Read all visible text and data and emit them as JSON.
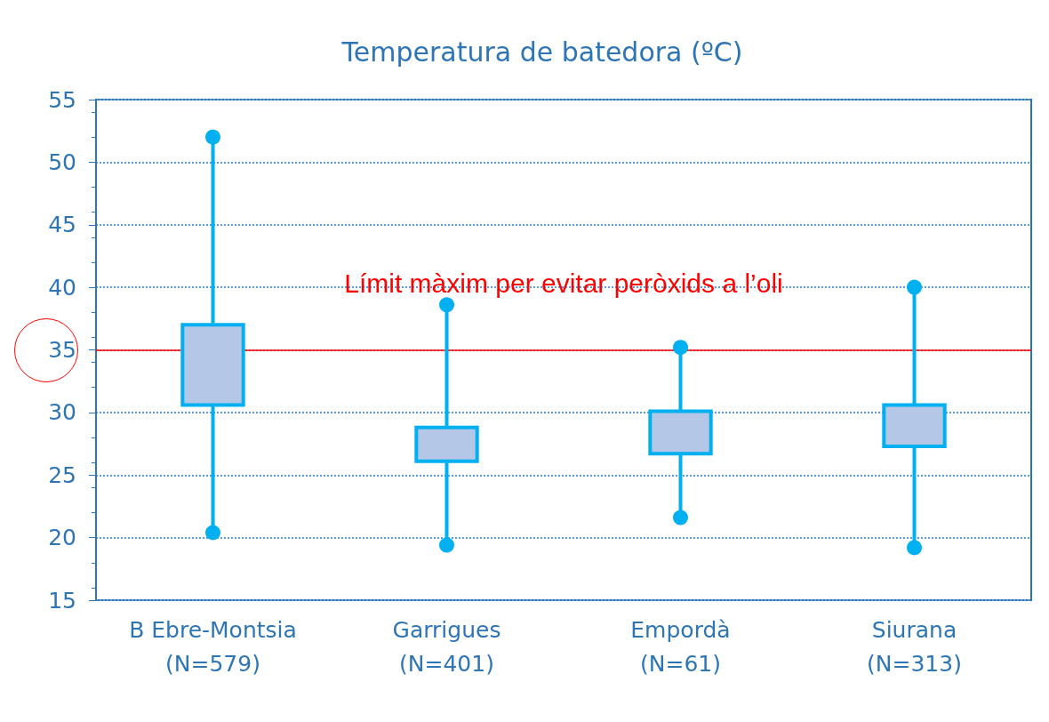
{
  "chart_data": {
    "type": "box",
    "title": "Temperatura de batedora (ºC)",
    "categories": [
      "B Ebre-Montsia\n(N=579)",
      "Garrigues\n(N=401)",
      "Empordà\n(N=61)",
      "Siurana\n(N=313)"
    ],
    "series": [
      {
        "color": "#00b0f0",
        "boxes": [
          {
            "low": 20.4,
            "q1": 30.6,
            "q3": 37,
            "high": 52
          },
          {
            "low": 19.4,
            "q1": 26.1,
            "q3": 28.8,
            "high": 38.6
          },
          {
            "low": 21.6,
            "q1": 26.7,
            "q3": 30.1,
            "high": 35.2
          },
          {
            "low": 19.2,
            "q1": 27.3,
            "q3": 30.6,
            "high": 40
          }
        ]
      },
      {
        "type": "scatter",
        "color": "#00b0f0",
        "x": [
          "B Ebre-Montsia\n(N=579)",
          "Garrigues\n(N=401)",
          "Empordà\n(N=61)",
          "Siurana\n(N=313)"
        ],
        "values": [
          52,
          38.6,
          35.2,
          40
        ]
      },
      {
        "type": "scatter",
        "color": "#00b0f0",
        "x": [
          "B Ebre-Montsia\n(N=579)",
          "Garrigues\n(N=401)",
          "Empordà\n(N=61)",
          "Siurana\n(N=313)"
        ],
        "values": [
          20.4,
          19.4,
          21.6,
          19.2
        ]
      }
    ],
    "marker": "circle",
    "ylim": [
      15,
      55
    ],
    "yticks": [
      15,
      20,
      25,
      30,
      35,
      40,
      45,
      50,
      55
    ],
    "grid": "y",
    "ref_lines": [
      {
        "axis": "y",
        "value": 35,
        "label": "Límit màxim per evitar peròxids a l’oli",
        "color": "#ff0000"
      }
    ]
  }
}
